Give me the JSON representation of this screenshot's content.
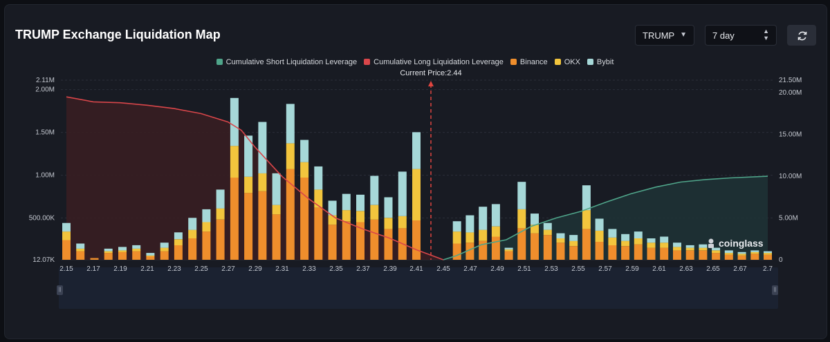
{
  "header": {
    "title": "TRUMP Exchange Liquidation Map",
    "symbol": "TRUMP",
    "period": "7 day"
  },
  "watermark": "coinglass",
  "chart_data": {
    "type": "bar",
    "title": "TRUMP Exchange Liquidation Map",
    "current_price_label": "Current Price:2.44",
    "current_price": 2.44,
    "legend": [
      {
        "name": "Cumulative Short Liquidation Leverage",
        "color": "#4fa58a"
      },
      {
        "name": "Cumulative Long Liquidation Leverage",
        "color": "#d9464a"
      },
      {
        "name": "Binance",
        "color": "#ef8e2c"
      },
      {
        "name": "OKX",
        "color": "#f2c53d"
      },
      {
        "name": "Bybit",
        "color": "#a6d8d8"
      }
    ],
    "x_tick_labels": [
      "2.15",
      "2.17",
      "2.19",
      "2.21",
      "2.23",
      "2.25",
      "2.27",
      "2.29",
      "2.31",
      "2.33",
      "2.35",
      "2.37",
      "2.39",
      "2.41",
      "2.45",
      "2.47",
      "2.49",
      "2.51",
      "2.53",
      "2.55",
      "2.57",
      "2.59",
      "2.61",
      "2.63",
      "2.65",
      "2.67",
      "2.7"
    ],
    "y_left_ticks": [
      "12.07K",
      "500.00K",
      "1.00M",
      "1.50M",
      "2.00M",
      "2.11M"
    ],
    "y_left_tick_values": [
      12070,
      500000,
      1000000,
      1500000,
      2000000,
      2110000
    ],
    "y_left_range": [
      12070,
      2110000
    ],
    "y_right_ticks": [
      "0",
      "5.00M",
      "10.00M",
      "15.00M",
      "20.00M",
      "21.50M"
    ],
    "y_right_tick_values": [
      0,
      5000000,
      10000000,
      15000000,
      20000000,
      21500000
    ],
    "y_right_range": [
      0,
      21500000
    ],
    "grid": true,
    "legend_position": "top-center",
    "series": [
      {
        "name": "Binance",
        "values": [
          230000,
          100000,
          20000,
          80000,
          90000,
          100000,
          40000,
          100000,
          170000,
          250000,
          330000,
          470000,
          960000,
          780000,
          800000,
          530000,
          1060000,
          960000,
          610000,
          410000,
          450000,
          440000,
          470000,
          360000,
          370000,
          460000,
          0,
          190000,
          200000,
          220000,
          270000,
          100000,
          370000,
          310000,
          290000,
          200000,
          160000,
          360000,
          210000,
          170000,
          160000,
          180000,
          140000,
          140000,
          110000,
          110000,
          110000,
          80000,
          60000,
          50000,
          70000,
          60000
        ]
      },
      {
        "name": "OKX",
        "values": [
          100000,
          30000,
          0,
          20000,
          20000,
          30000,
          10000,
          40000,
          70000,
          100000,
          110000,
          130000,
          370000,
          190000,
          210000,
          110000,
          300000,
          180000,
          210000,
          110000,
          130000,
          130000,
          170000,
          130000,
          140000,
          600000,
          0,
          140000,
          120000,
          130000,
          120000,
          20000,
          220000,
          100000,
          60000,
          50000,
          60000,
          220000,
          130000,
          90000,
          60000,
          70000,
          60000,
          60000,
          40000,
          30000,
          30000,
          30000,
          20000,
          20000,
          20000,
          20000
        ]
      },
      {
        "name": "Bybit",
        "values": [
          100000,
          60000,
          0,
          30000,
          40000,
          40000,
          30000,
          60000,
          80000,
          140000,
          150000,
          220000,
          560000,
          480000,
          600000,
          370000,
          460000,
          260000,
          270000,
          170000,
          190000,
          190000,
          340000,
          240000,
          520000,
          430000,
          0,
          120000,
          200000,
          270000,
          260000,
          20000,
          320000,
          130000,
          80000,
          60000,
          70000,
          290000,
          140000,
          100000,
          80000,
          80000,
          50000,
          70000,
          50000,
          30000,
          40000,
          30000,
          30000,
          20000,
          20000,
          20000
        ]
      },
      {
        "name": "Cumulative Long Liquidation Leverage",
        "x": [
          2.15,
          2.17,
          2.19,
          2.21,
          2.23,
          2.25,
          2.27,
          2.28,
          2.29,
          2.31,
          2.33,
          2.35,
          2.37,
          2.39,
          2.41,
          2.42,
          2.43
        ],
        "values": [
          19500000,
          18900000,
          18800000,
          18500000,
          18100000,
          17500000,
          16500000,
          15500000,
          13500000,
          10000000,
          7300000,
          5000000,
          3700000,
          2600000,
          1200000,
          600000,
          0
        ]
      },
      {
        "name": "Cumulative Short Liquidation Leverage",
        "x": [
          2.43,
          2.45,
          2.47,
          2.49,
          2.51,
          2.53,
          2.55,
          2.57,
          2.59,
          2.61,
          2.63,
          2.65,
          2.67,
          2.7
        ],
        "values": [
          0,
          500000,
          1800000,
          2400000,
          4000000,
          5000000,
          5800000,
          6900000,
          7900000,
          8700000,
          9300000,
          9600000,
          9800000,
          10000000
        ]
      }
    ]
  }
}
